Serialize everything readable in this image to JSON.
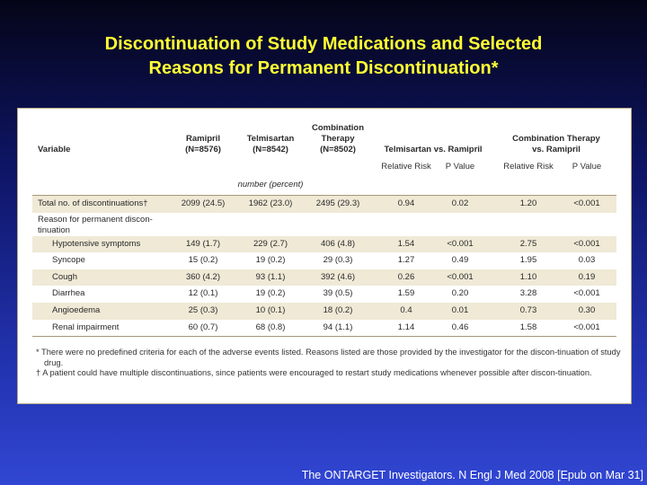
{
  "title": {
    "line1": "Discontinuation of Study Medications and Selected",
    "line2": "Reasons for Permanent Discontinuation*"
  },
  "table": {
    "headers": {
      "variable": "Variable",
      "ramipril": "Ramipril",
      "ramipril_n": "(N=8576)",
      "telmisartan": "Telmisartan",
      "telmisartan_n": "(N=8542)",
      "combination_1": "Combination",
      "combination_2": "Therapy",
      "combination_n": "(N=8502)",
      "telmi_vs_rami": "Telmisartan vs. Ramipril",
      "combo_vs_rami_1": "Combination Therapy",
      "combo_vs_rami_2": "vs. Ramipril",
      "relative_risk": "Relative Risk",
      "p_value": "P Value",
      "units": "number (percent)"
    },
    "total_row": {
      "label": "Total no. of discontinuations†",
      "ramipril": "2099 (24.5)",
      "telmisartan": "1962 (23.0)",
      "combination": "2495 (29.3)",
      "rr1": "0.94",
      "p1": "0.02",
      "rr2": "1.20",
      "p2": "<0.001"
    },
    "reason_label": "Reason for permanent discon-tinuation",
    "rows": [
      {
        "label": "Hypotensive symptoms",
        "ramipril": "149 (1.7)",
        "telmisartan": "229 (2.7)",
        "combination": "406 (4.8)",
        "rr1": "1.54",
        "p1": "<0.001",
        "rr2": "2.75",
        "p2": "<0.001"
      },
      {
        "label": "Syncope",
        "ramipril": "15 (0.2)",
        "telmisartan": "19 (0.2)",
        "combination": "29 (0.3)",
        "rr1": "1.27",
        "p1": "0.49",
        "rr2": "1.95",
        "p2": "0.03"
      },
      {
        "label": "Cough",
        "ramipril": "360 (4.2)",
        "telmisartan": "93 (1.1)",
        "combination": "392 (4.6)",
        "rr1": "0.26",
        "p1": "<0.001",
        "rr2": "1.10",
        "p2": "0.19"
      },
      {
        "label": "Diarrhea",
        "ramipril": "12 (0.1)",
        "telmisartan": "19 (0.2)",
        "combination": "39 (0.5)",
        "rr1": "1.59",
        "p1": "0.20",
        "rr2": "3.28",
        "p2": "<0.001"
      },
      {
        "label": "Angioedema",
        "ramipril": "25 (0.3)",
        "telmisartan": "10 (0.1)",
        "combination": "18 (0.2)",
        "rr1": "0.4",
        "p1": "0.01",
        "rr2": "0.73",
        "p2": "0.30"
      },
      {
        "label": "Renal impairment",
        "ramipril": "60 (0.7)",
        "telmisartan": "68 (0.8)",
        "combination": "94 (1.1)",
        "rr1": "1.14",
        "p1": "0.46",
        "rr2": "1.58",
        "p2": "<0.001"
      }
    ]
  },
  "footnotes": {
    "star": "* There were no predefined criteria for each of the adverse events listed. Reasons listed are those provided by the investigator for the discon-tinuation of study drug.",
    "dagger": "† A patient could have multiple discontinuations, since patients were encouraged to restart study medications whenever possible after discon-tinuation."
  },
  "citation": "The ONTARGET Investigators. N Engl J Med 2008 [Epub on Mar 31]"
}
